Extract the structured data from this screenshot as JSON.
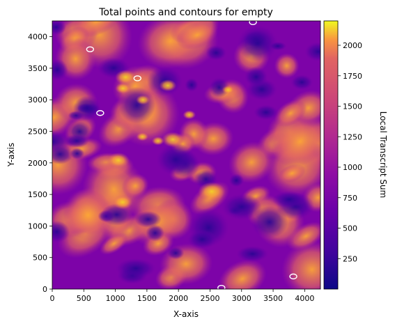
{
  "chart_data": {
    "type": "heatmap",
    "title": "Total points and contours for empty",
    "xlabel": "X-axis",
    "ylabel": "Y-axis",
    "xlim": [
      0,
      4250
    ],
    "ylim": [
      0,
      4250
    ],
    "x_ticks": [
      0,
      500,
      1000,
      1500,
      2000,
      2500,
      3000,
      3500,
      4000
    ],
    "y_ticks": [
      0,
      500,
      1000,
      1500,
      2000,
      2500,
      3000,
      3500,
      4000
    ],
    "colorbar": {
      "label": "Local Transcript Sum",
      "range": [
        0,
        2200
      ],
      "ticks": [
        250,
        500,
        750,
        1000,
        1250,
        1500,
        1750,
        2000
      ],
      "colormap": "plasma"
    },
    "contour_color": "#ffffff",
    "contours": [
      {
        "x": 600,
        "y": 3800
      },
      {
        "x": 1350,
        "y": 3340
      },
      {
        "x": 760,
        "y": 2790
      },
      {
        "x": 3180,
        "y": 4230
      },
      {
        "x": 3820,
        "y": 200
      },
      {
        "x": 2680,
        "y": 20
      }
    ],
    "grid": false,
    "legend": "none"
  }
}
